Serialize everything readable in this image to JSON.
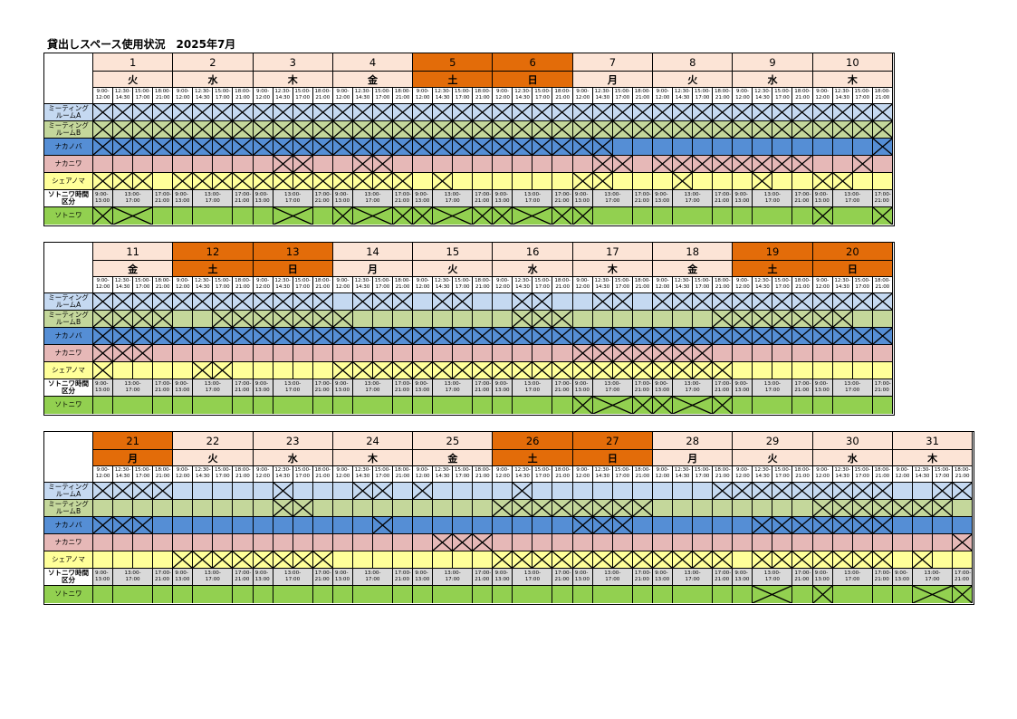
{
  "title": "貸出しスペース使用状況　2025年7月",
  "slot_labels": [
    "9:00-\n12:00",
    "12:30-\n14:30",
    "15:00-\n17:00",
    "18:00-\n21:00"
  ],
  "outside_slot_labels": [
    "9:00-\n13:00",
    "13:00-\n17:00",
    "17:00-\n21:00"
  ],
  "rooms": [
    {
      "label": "ミーティング\nルームA",
      "color": "#c5d9f1"
    },
    {
      "label": "ミーティング\nルームB",
      "color": "#c4d79b"
    },
    {
      "label": "ナカノバ",
      "color": "#558ed5"
    },
    {
      "label": "ナカニワ",
      "color": "#e6b8b7"
    },
    {
      "label": "シェアノマ",
      "color": "#ffff99"
    }
  ],
  "outside_time_label": "ソトニワ時間\n区分",
  "outside": {
    "label": "ソトニワ",
    "color": "#92d050"
  },
  "colors": {
    "weekend_header": "#e36c09",
    "weekday_header": "#fce4d6",
    "time_band": "#d9d9d9",
    "slot_header": "#ffffff"
  },
  "blocks": [
    {
      "days": [
        {
          "date": "1",
          "weekday": "火",
          "weekend": false
        },
        {
          "date": "2",
          "weekday": "水",
          "weekend": false
        },
        {
          "date": "3",
          "weekday": "木",
          "weekend": false
        },
        {
          "date": "4",
          "weekday": "金",
          "weekend": false
        },
        {
          "date": "5",
          "weekday": "土",
          "weekend": true
        },
        {
          "date": "6",
          "weekday": "日",
          "weekend": true
        },
        {
          "date": "7",
          "weekday": "月",
          "weekend": false
        },
        {
          "date": "8",
          "weekday": "火",
          "weekend": false
        },
        {
          "date": "9",
          "weekday": "水",
          "weekend": false
        },
        {
          "date": "10",
          "weekday": "木",
          "weekend": false
        }
      ],
      "booked": [
        [
          "1111",
          "1111",
          "1111",
          "1111",
          "1111",
          "1111",
          "1111",
          "1111",
          "1111",
          "1111"
        ],
        [
          "1111",
          "1111",
          "1111",
          "1111",
          "1111",
          "1111",
          "1111",
          "1111",
          "1111",
          "1111"
        ],
        [
          "1111",
          "1111",
          "1111",
          "1111",
          "1111",
          "1111",
          "1100",
          "0000",
          "0000",
          "0001"
        ],
        [
          "0000",
          "0000",
          "0110",
          "0110",
          "0000",
          "0000",
          "0110",
          "1111",
          "1111",
          "0010"
        ],
        [
          "1110",
          "1111",
          "1111",
          "1111",
          "0100",
          "0000",
          "1100",
          "0100",
          "0100",
          "1100"
        ]
      ],
      "outside_booked": [
        "110",
        "000",
        "010",
        "111",
        "111",
        "111",
        "100",
        "000",
        "000",
        "101"
      ]
    },
    {
      "days": [
        {
          "date": "11",
          "weekday": "金",
          "weekend": false
        },
        {
          "date": "12",
          "weekday": "土",
          "weekend": true
        },
        {
          "date": "13",
          "weekday": "日",
          "weekend": true
        },
        {
          "date": "14",
          "weekday": "月",
          "weekend": false
        },
        {
          "date": "15",
          "weekday": "火",
          "weekend": false
        },
        {
          "date": "16",
          "weekday": "水",
          "weekend": false
        },
        {
          "date": "17",
          "weekday": "木",
          "weekend": false
        },
        {
          "date": "18",
          "weekday": "金",
          "weekend": false
        },
        {
          "date": "19",
          "weekday": "土",
          "weekend": true
        },
        {
          "date": "20",
          "weekday": "日",
          "weekend": true
        }
      ],
      "booked": [
        [
          "1111",
          "1111",
          "1111",
          "0111",
          "0110",
          "0110",
          "0110",
          "1111",
          "1111",
          "1111"
        ],
        [
          "1111",
          "0011",
          "1111",
          "1000",
          "0000",
          "0111",
          "0000",
          "0001",
          "1111",
          "1100"
        ],
        [
          "1111",
          "1111",
          "1111",
          "1111",
          "1111",
          "1111",
          "1111",
          "1111",
          "1111",
          "1111"
        ],
        [
          "1110",
          "0000",
          "0000",
          "0000",
          "0000",
          "0000",
          "1111",
          "1110",
          "0000",
          "0000"
        ],
        [
          "1000",
          "0110",
          "0000",
          "1111",
          "1111",
          "1111",
          "1111",
          "1111",
          "0000",
          "0000"
        ]
      ],
      "outside_booked": [
        "000",
        "000",
        "000",
        "000",
        "000",
        "000",
        "111",
        "111",
        "000",
        "000"
      ]
    },
    {
      "days": [
        {
          "date": "21",
          "weekday": "月",
          "weekend": true
        },
        {
          "date": "22",
          "weekday": "火",
          "weekend": false
        },
        {
          "date": "23",
          "weekday": "水",
          "weekend": false
        },
        {
          "date": "24",
          "weekday": "木",
          "weekend": false
        },
        {
          "date": "25",
          "weekday": "金",
          "weekend": false
        },
        {
          "date": "26",
          "weekday": "土",
          "weekend": true
        },
        {
          "date": "27",
          "weekday": "日",
          "weekend": true
        },
        {
          "date": "28",
          "weekday": "月",
          "weekend": false
        },
        {
          "date": "29",
          "weekday": "火",
          "weekend": false
        },
        {
          "date": "30",
          "weekday": "水",
          "weekend": false
        },
        {
          "date": "31",
          "weekday": "木",
          "weekend": false
        }
      ],
      "booked": [
        [
          "1111",
          "0000",
          "0100",
          "0110",
          "1000",
          "0100",
          "0000",
          "0001",
          "1111",
          "1111",
          "0011"
        ],
        [
          "0000",
          "0000",
          "0110",
          "0000",
          "0000",
          "1111",
          "1111",
          "0000",
          "0000",
          "1111",
          "1110"
        ],
        [
          "1110",
          "0000",
          "0000",
          "0010",
          "0000",
          "0000",
          "1110",
          "0000",
          "0111",
          "1111",
          "0000"
        ],
        [
          "0000",
          "0000",
          "0000",
          "0000",
          "0111",
          "0000",
          "0000",
          "0000",
          "0000",
          "0000",
          "0001"
        ],
        [
          "0000",
          "1111",
          "1111",
          "0000",
          "0000",
          "1111",
          "1111",
          "1111",
          "0111",
          "1111",
          "0100"
        ]
      ],
      "outside_booked": [
        "000",
        "000",
        "000",
        "000",
        "000",
        "000",
        "000",
        "000",
        "010",
        "100",
        "011"
      ]
    }
  ]
}
